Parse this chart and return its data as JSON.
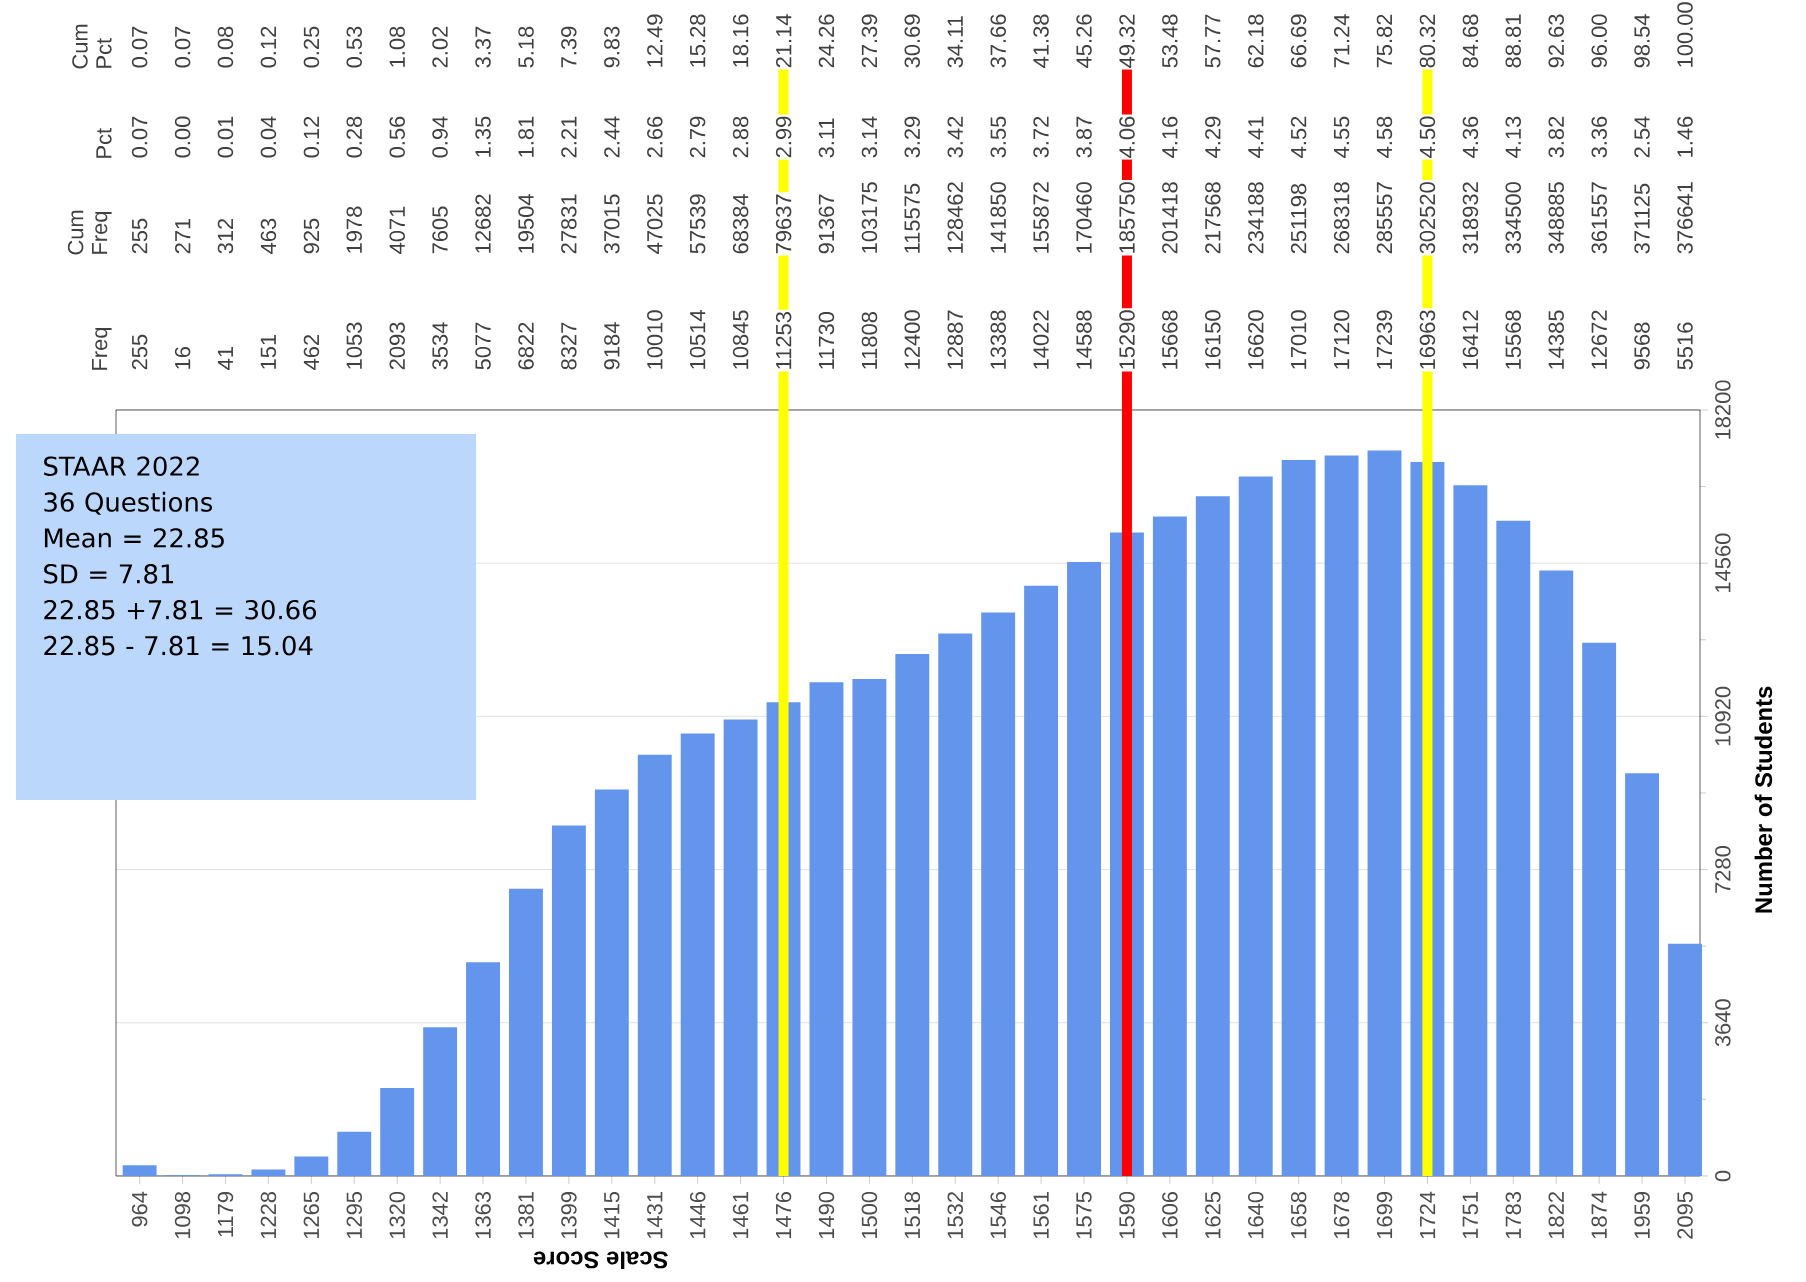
{
  "chart_data": {
    "type": "bar",
    "xlabel": "Scale Score",
    "ylabel": "Number of Students",
    "categories": [
      "964",
      "1098",
      "1179",
      "1228",
      "1265",
      "1295",
      "1320",
      "1342",
      "1363",
      "1381",
      "1399",
      "1415",
      "1431",
      "1446",
      "1461",
      "1476",
      "1490",
      "1500",
      "1518",
      "1532",
      "1546",
      "1561",
      "1575",
      "1590",
      "1606",
      "1625",
      "1640",
      "1658",
      "1678",
      "1699",
      "1724",
      "1751",
      "1783",
      "1822",
      "1874",
      "1959",
      "2095"
    ],
    "values": [
      255,
      16,
      41,
      151,
      462,
      1053,
      2093,
      3534,
      5077,
      6822,
      8327,
      9184,
      10010,
      10514,
      10845,
      11253,
      11730,
      11808,
      12400,
      12887,
      13388,
      14022,
      14588,
      15290,
      15668,
      16150,
      16620,
      17010,
      17120,
      17239,
      16963,
      16412,
      15568,
      14385,
      12672,
      9568,
      5516
    ],
    "color": "#6495ed",
    "grid": "y",
    "ylim": [
      0,
      18200
    ],
    "yticks": [
      0,
      3640,
      7280,
      10920,
      14560,
      18200
    ],
    "ref_lines": [
      {
        "axis": "x",
        "value": "1476",
        "color": "#ffff00"
      },
      {
        "axis": "x",
        "value": "1590",
        "color": "#ff0000"
      },
      {
        "axis": "x",
        "value": "1724",
        "color": "#ffff00"
      }
    ],
    "annotations": [
      "STAAR 2022",
      "36 Questions",
      "Mean = 22.85",
      "SD = 7.81",
      "22.85 +7.81 = 30.66",
      "22.85 - 7.81 = 15.04",
      "Freq",
      "Cum Freq",
      "Pct",
      "Cum Pct",
      "255",
      "16",
      "41",
      "151",
      "462",
      "1053",
      "2093",
      "3534",
      "5077",
      "6822",
      "8327",
      "9184",
      "10010",
      "10514",
      "10845",
      "11253",
      "11730",
      "11808",
      "12400",
      "12887",
      "13388",
      "14022",
      "14588",
      "15290",
      "15668",
      "16150",
      "16620",
      "17010",
      "17120",
      "17239",
      "16963",
      "16412",
      "15568",
      "14385",
      "12672",
      "9568",
      "5516",
      "255",
      "271",
      "312",
      "463",
      "925",
      "1978",
      "4071",
      "7605",
      "12682",
      "19504",
      "27831",
      "37015",
      "47025",
      "57539",
      "68384",
      "79637",
      "91367",
      "103175",
      "115575",
      "128462",
      "141850",
      "155872",
      "170460",
      "185750",
      "201418",
      "217568",
      "234188",
      "251198",
      "268318",
      "285557",
      "302520",
      "318932",
      "334500",
      "348885",
      "361557",
      "371125",
      "376641",
      "0.07",
      "0.00",
      "0.01",
      "0.04",
      "0.12",
      "0.28",
      "0.56",
      "0.94",
      "1.35",
      "1.81",
      "2.21",
      "2.44",
      "2.66",
      "2.79",
      "2.88",
      "2.99",
      "3.11",
      "3.14",
      "3.29",
      "3.42",
      "3.55",
      "3.72",
      "3.87",
      "4.06",
      "4.16",
      "4.29",
      "4.41",
      "4.52",
      "4.55",
      "4.58",
      "4.50",
      "4.36",
      "4.13",
      "3.82",
      "3.36",
      "2.54",
      "1.46",
      "0.07",
      "0.07",
      "0.08",
      "0.12",
      "0.25",
      "0.53",
      "1.08",
      "2.02",
      "3.37",
      "5.18",
      "7.39",
      "9.83",
      "12.49",
      "15.28",
      "18.16",
      "21.14",
      "24.26",
      "27.39",
      "30.69",
      "34.11",
      "37.66",
      "41.38",
      "45.26",
      "49.32",
      "53.48",
      "57.77",
      "62.18",
      "66.69",
      "71.24",
      "75.82",
      "80.32",
      "84.68",
      "88.81",
      "92.63",
      "96.00",
      "98.54",
      "100.00"
    ]
  }
}
